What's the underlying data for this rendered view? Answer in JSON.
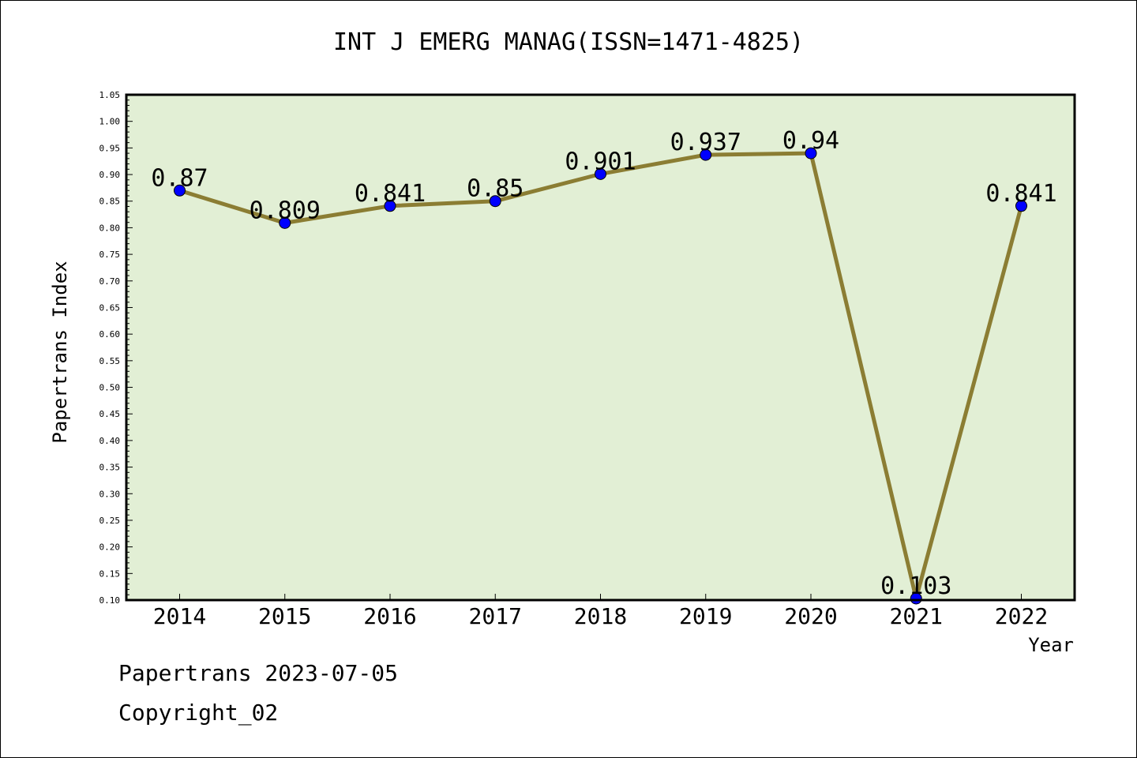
{
  "chart_data": {
    "type": "line",
    "title": "INT J EMERG MANAG(ISSN=1471-4825)",
    "xlabel": "Year",
    "ylabel": "Papertrans Index",
    "categories": [
      "2014",
      "2015",
      "2016",
      "2017",
      "2018",
      "2019",
      "2020",
      "2021",
      "2022"
    ],
    "series": [
      {
        "values": [
          0.87,
          0.809,
          0.841,
          0.85,
          0.901,
          0.937,
          0.94,
          0.103,
          0.841
        ],
        "data_labels": [
          "0.87",
          "0.809",
          "0.841",
          "0.85",
          "0.901",
          "0.937",
          "0.94",
          "0.103",
          "0.841"
        ]
      }
    ],
    "ylim": [
      0.1,
      1.05
    ],
    "yticks": [
      "0.10",
      "0.15",
      "0.20",
      "0.25",
      "0.30",
      "0.35",
      "0.40",
      "0.45",
      "0.50",
      "0.55",
      "0.60",
      "0.65",
      "0.70",
      "0.75",
      "0.80",
      "0.85",
      "0.90",
      "0.95",
      "1.00",
      "1.05"
    ],
    "grid": false,
    "colors": {
      "plot_background": "#e2efd5",
      "line": "#8b7d33",
      "marker": "#0000ff"
    }
  },
  "footer": {
    "line1": "Papertrans 2023-07-05",
    "line2": "Copyright_02"
  }
}
